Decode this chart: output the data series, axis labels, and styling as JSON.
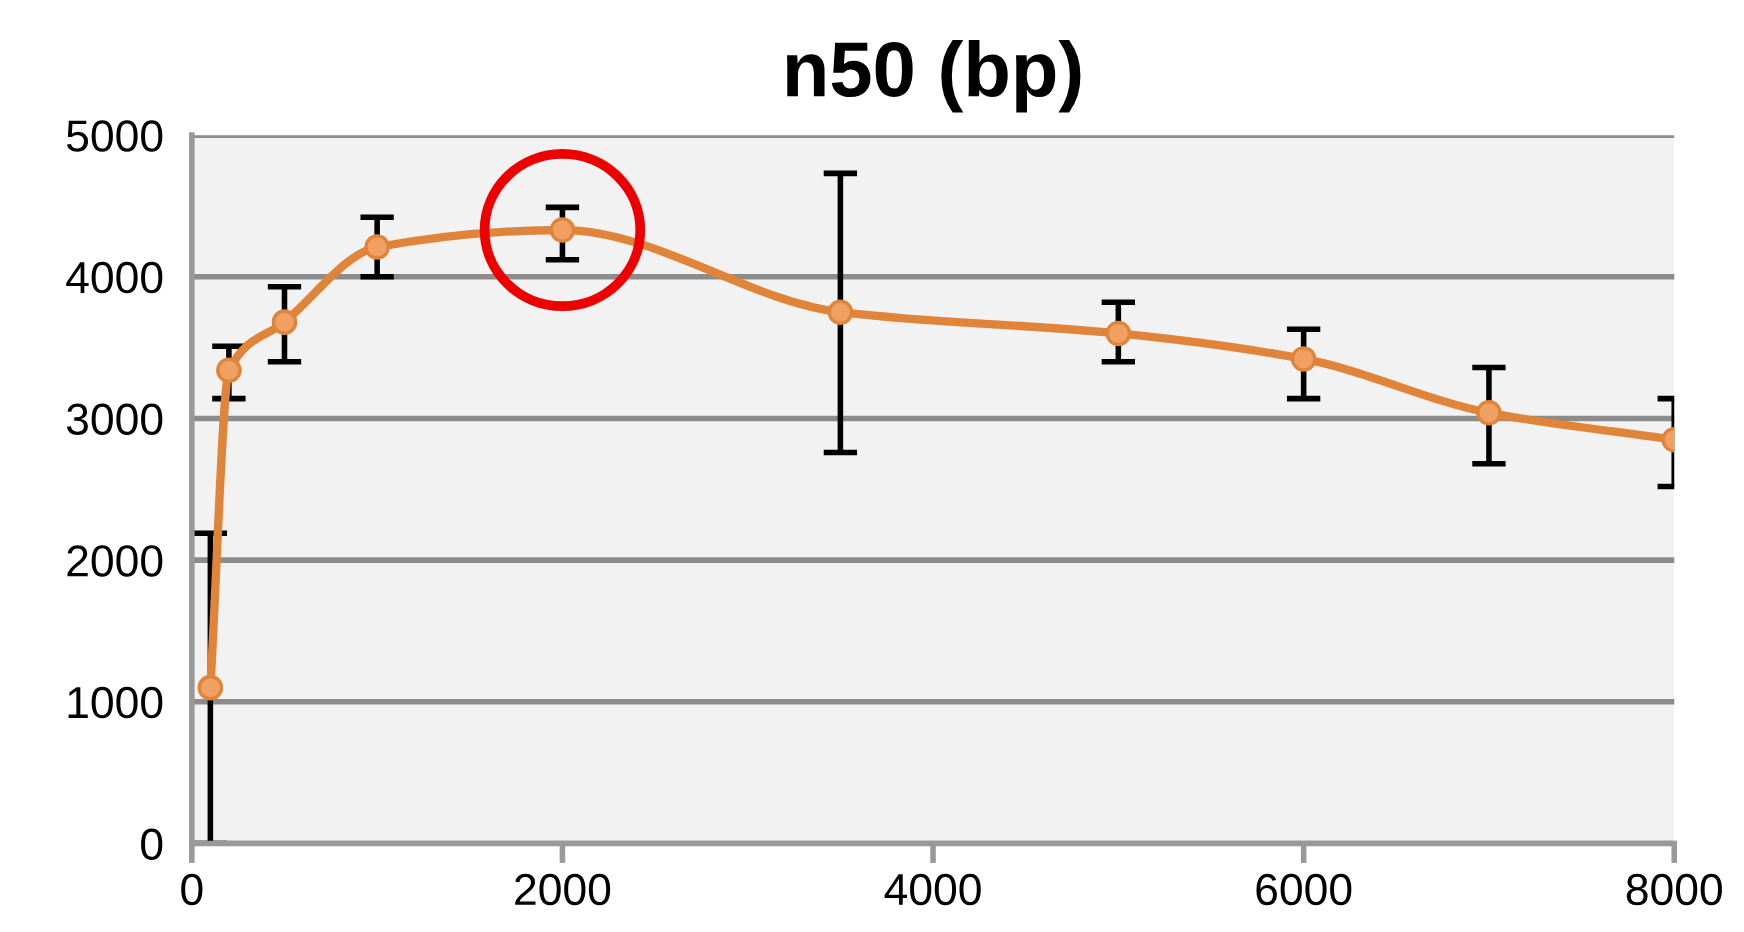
{
  "chart_data": {
    "type": "line",
    "title": "n50 (bp)",
    "x": [
      100,
      200,
      500,
      1000,
      2000,
      3500,
      5000,
      6000,
      7000,
      8000
    ],
    "series": [
      {
        "color": "#e0843a",
        "values": [
          1100,
          3340,
          3680,
          4210,
          4330,
          3750,
          3600,
          3420,
          3040,
          2850
        ],
        "errors": [
          [
            0,
            2190
          ],
          [
            3140,
            3510
          ],
          [
            3400,
            3930
          ],
          [
            4000,
            4420
          ],
          [
            4120,
            4490
          ],
          [
            2760,
            4730
          ],
          [
            3400,
            3820
          ],
          [
            3140,
            3630
          ],
          [
            2680,
            3360
          ],
          [
            2520,
            3140
          ]
        ]
      }
    ],
    "xlim": [
      0,
      8000
    ],
    "xticks": [
      0,
      2000,
      4000,
      6000,
      8000
    ],
    "ylim": [
      0,
      5000
    ],
    "yticks": [
      0,
      1000,
      2000,
      3000,
      4000,
      5000
    ],
    "grid": "y",
    "marker": "circle",
    "line_style": "solid",
    "legend": false
  }
}
